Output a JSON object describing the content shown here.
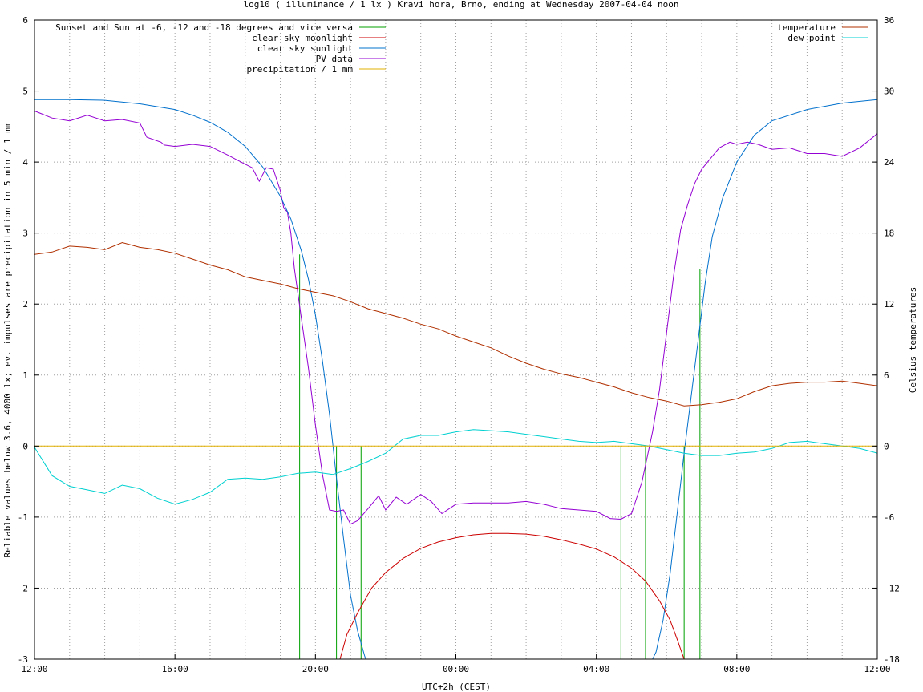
{
  "chart_data": {
    "type": "line",
    "title": "log10 ( illuminance / 1 lx ) Kravi hora, Brno, ending at Wednesday 2007-04-04 noon",
    "xlabel": "UTC+2h (CEST)",
    "ylabel": "Reliable values below 3.6, 4000 lx; ev. impulses are precipitation in 5 min / 1 mm",
    "y2label": "Celsius temperatures",
    "xlim": [
      0,
      24
    ],
    "ylim": [
      -3,
      6
    ],
    "y2lim": [
      -18,
      36
    ],
    "grid": true,
    "x_ticks": [
      {
        "v": 0,
        "label": "12:00"
      },
      {
        "v": 4,
        "label": "16:00"
      },
      {
        "v": 8,
        "label": "20:00"
      },
      {
        "v": 12,
        "label": "00:00"
      },
      {
        "v": 16,
        "label": "04:00"
      },
      {
        "v": 20,
        "label": "08:00"
      },
      {
        "v": 24,
        "label": "12:00"
      }
    ],
    "y_ticks": [
      {
        "v": -3,
        "label": "-3"
      },
      {
        "v": -2,
        "label": "-2"
      },
      {
        "v": -1,
        "label": "-1"
      },
      {
        "v": 0,
        "label": "0"
      },
      {
        "v": 1,
        "label": "1"
      },
      {
        "v": 2,
        "label": "2"
      },
      {
        "v": 3,
        "label": "3"
      },
      {
        "v": 4,
        "label": "4"
      },
      {
        "v": 5,
        "label": "5"
      },
      {
        "v": 6,
        "label": "6"
      }
    ],
    "y2_ticks": [
      {
        "v": -18,
        "label": "-18"
      },
      {
        "v": -12,
        "label": "-12"
      },
      {
        "v": -6,
        "label": "-6"
      },
      {
        "v": 0,
        "label": "0"
      },
      {
        "v": 6,
        "label": "6"
      },
      {
        "v": 12,
        "label": "12"
      },
      {
        "v": 18,
        "label": "18"
      },
      {
        "v": 24,
        "label": "24"
      },
      {
        "v": 30,
        "label": "30"
      },
      {
        "v": 36,
        "label": "36"
      }
    ],
    "legend_left": [
      {
        "name": "Sunset and Sun at -6, -12 and -18 degrees and vice versa",
        "color": "#00a000"
      },
      {
        "name": "clear sky moonlight",
        "color": "#cc0000"
      },
      {
        "name": "clear sky sunlight",
        "color": "#0070cc"
      },
      {
        "name": "PV data",
        "color": "#9400d3"
      },
      {
        "name": "precipitation / 1 mm",
        "color": "#e0b000"
      }
    ],
    "legend_right": [
      {
        "name": "temperature",
        "color": "#b03000"
      },
      {
        "name": "dew point",
        "color": "#00d0d0"
      }
    ],
    "sun_events": [
      {
        "x": 7.55,
        "top": 2.7
      },
      {
        "x": 8.6,
        "top": 0
      },
      {
        "x": 9.3,
        "top": 0
      },
      {
        "x": 16.7,
        "top": 0
      },
      {
        "x": 17.4,
        "top": 0
      },
      {
        "x": 18.5,
        "top": 0
      },
      {
        "x": 18.95,
        "top": 2.5
      }
    ],
    "series": [
      {
        "name": "PV data",
        "color": "#9400d3",
        "axis": "y",
        "x": [
          0,
          0.5,
          1,
          1.5,
          2,
          2.5,
          3,
          3.2,
          3.6,
          3.7,
          4,
          4.5,
          5,
          5.5,
          6,
          6.2,
          6.4,
          6.6,
          6.8,
          7,
          7.1,
          7.2,
          7.3,
          7.4,
          7.6,
          7.8,
          8,
          8.2,
          8.4,
          8.6,
          8.8,
          9,
          9.2,
          9.5,
          9.8,
          10,
          10.3,
          10.6,
          11,
          11.3,
          11.6,
          12,
          12.5,
          13,
          13.5,
          14,
          14.5,
          15,
          15.5,
          16,
          16.4,
          16.7,
          17,
          17.3,
          17.6,
          17.8,
          18,
          18.2,
          18.4,
          18.6,
          18.8,
          19,
          19.2,
          19.5,
          19.8,
          20,
          20.3,
          20.6,
          21,
          21.5,
          22,
          22.5,
          23,
          23.5,
          24
        ],
        "y": [
          4.72,
          4.62,
          4.58,
          4.66,
          4.58,
          4.6,
          4.55,
          4.35,
          4.28,
          4.24,
          4.22,
          4.25,
          4.22,
          4.1,
          3.97,
          3.92,
          3.73,
          3.92,
          3.9,
          3.6,
          3.35,
          3.3,
          3.0,
          2.5,
          1.8,
          1.1,
          0.3,
          -0.4,
          -0.9,
          -0.92,
          -0.9,
          -1.1,
          -1.05,
          -0.88,
          -0.7,
          -0.9,
          -0.72,
          -0.82,
          -0.68,
          -0.78,
          -0.95,
          -0.82,
          -0.8,
          -0.8,
          -0.8,
          -0.78,
          -0.82,
          -0.88,
          -0.9,
          -0.92,
          -1.02,
          -1.03,
          -0.95,
          -0.5,
          0.2,
          0.8,
          1.6,
          2.4,
          3.05,
          3.4,
          3.7,
          3.9,
          4.02,
          4.2,
          4.28,
          4.25,
          4.28,
          4.25,
          4.18,
          4.2,
          4.12,
          4.12,
          4.08,
          4.2,
          4.4
        ]
      },
      {
        "name": "clear sky sunlight",
        "color": "#0070cc",
        "axis": "y",
        "x": [
          0,
          1,
          2,
          3,
          4,
          4.5,
          5,
          5.5,
          6,
          6.5,
          7,
          7.3,
          7.6,
          7.8,
          8,
          8.2,
          8.4,
          8.6,
          8.8,
          9,
          9.2,
          9.4,
          9.5,
          17.5,
          17.7,
          17.9,
          18.1,
          18.3,
          18.5,
          18.7,
          18.9,
          19.1,
          19.3,
          19.6,
          20,
          20.5,
          21,
          22,
          23,
          24
        ],
        "y": [
          4.88,
          4.88,
          4.87,
          4.82,
          4.74,
          4.66,
          4.56,
          4.42,
          4.22,
          3.93,
          3.52,
          3.2,
          2.75,
          2.35,
          1.85,
          1.2,
          0.45,
          -0.45,
          -1.3,
          -2.1,
          -2.6,
          -2.95,
          -3.1,
          -3.1,
          -2.9,
          -2.45,
          -1.8,
          -0.95,
          -0.1,
          0.7,
          1.5,
          2.3,
          2.95,
          3.5,
          4.0,
          4.38,
          4.58,
          4.74,
          4.83,
          4.88
        ]
      },
      {
        "name": "clear sky moonlight",
        "color": "#cc0000",
        "axis": "y",
        "x": [
          8.7,
          8.9,
          9.2,
          9.6,
          10,
          10.5,
          11,
          11.5,
          12,
          12.5,
          13,
          13.5,
          14,
          14.5,
          15,
          15.5,
          16,
          16.5,
          17,
          17.4,
          17.8,
          18.1,
          18.3,
          18.5
        ],
        "y": [
          -3.0,
          -2.65,
          -2.35,
          -2.0,
          -1.78,
          -1.58,
          -1.44,
          -1.35,
          -1.29,
          -1.25,
          -1.23,
          -1.23,
          -1.24,
          -1.27,
          -1.32,
          -1.38,
          -1.45,
          -1.56,
          -1.72,
          -1.9,
          -2.18,
          -2.45,
          -2.72,
          -3.0
        ]
      },
      {
        "name": "temperature",
        "color": "#b03000",
        "axis": "y2",
        "x": [
          0,
          0.5,
          1,
          1.5,
          2,
          2.5,
          3,
          3.5,
          4,
          4.5,
          5,
          5.5,
          6,
          6.5,
          7,
          7.5,
          8,
          8.5,
          9,
          9.5,
          10,
          10.5,
          11,
          11.5,
          12,
          12.5,
          13,
          13.5,
          14,
          14.5,
          15,
          15.5,
          16,
          16.5,
          17,
          17.5,
          18,
          18.5,
          19,
          19.5,
          20,
          20.5,
          21,
          21.5,
          22,
          22.5,
          23,
          23.5,
          24
        ],
        "y": [
          16.2,
          16.4,
          16.9,
          16.8,
          16.6,
          17.2,
          16.8,
          16.6,
          16.3,
          15.8,
          15.3,
          14.9,
          14.3,
          14.0,
          13.7,
          13.3,
          13.0,
          12.7,
          12.2,
          11.6,
          11.2,
          10.8,
          10.3,
          9.9,
          9.3,
          8.8,
          8.3,
          7.6,
          7.0,
          6.5,
          6.1,
          5.8,
          5.4,
          5.0,
          4.5,
          4.1,
          3.8,
          3.4,
          3.5,
          3.7,
          4.0,
          4.6,
          5.1,
          5.3,
          5.4,
          5.4,
          5.5,
          5.3,
          5.1
        ]
      },
      {
        "name": "dew point",
        "color": "#00d0d0",
        "axis": "y2",
        "x": [
          0,
          0.5,
          1,
          1.5,
          2,
          2.5,
          3,
          3.5,
          4,
          4.5,
          5,
          5.5,
          6,
          6.5,
          7,
          7.5,
          8,
          8.5,
          9,
          9.5,
          10,
          10.5,
          11,
          11.5,
          12,
          12.5,
          13,
          13.5,
          14,
          14.5,
          15,
          15.5,
          16,
          16.5,
          17,
          17.5,
          18,
          18.5,
          19,
          19.5,
          20,
          20.5,
          21,
          21.5,
          22,
          22.5,
          23,
          23.5,
          24
        ],
        "y": [
          -0.1,
          -2.5,
          -3.4,
          -3.7,
          -4.0,
          -3.3,
          -3.6,
          -4.4,
          -4.9,
          -4.5,
          -3.9,
          -2.8,
          -2.7,
          -2.8,
          -2.6,
          -2.3,
          -2.2,
          -2.4,
          -1.9,
          -1.3,
          -0.6,
          0.6,
          0.9,
          0.9,
          1.2,
          1.4,
          1.3,
          1.2,
          1.0,
          0.8,
          0.6,
          0.4,
          0.3,
          0.4,
          0.2,
          0.0,
          -0.3,
          -0.6,
          -0.8,
          -0.8,
          -0.6,
          -0.5,
          -0.2,
          0.3,
          0.4,
          0.2,
          0.0,
          -0.2,
          -0.6
        ]
      },
      {
        "name": "precipitation / 1 mm",
        "color": "#e0b000",
        "axis": "y",
        "x": [
          0,
          24
        ],
        "y": [
          0,
          0
        ]
      }
    ]
  }
}
